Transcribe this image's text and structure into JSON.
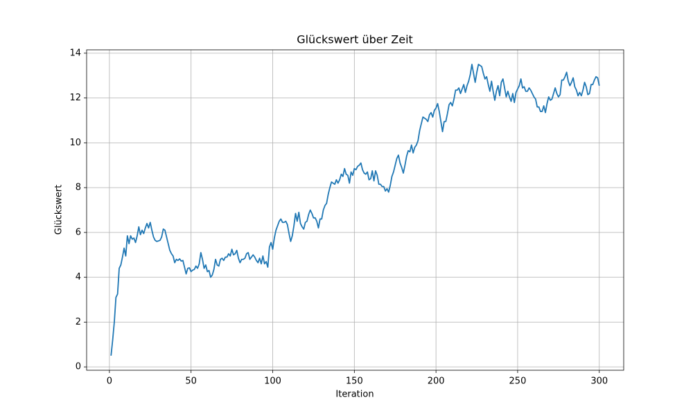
{
  "chart_data": {
    "type": "line",
    "title": "Glückswert über Zeit",
    "xlabel": "Iteration",
    "ylabel": "Glückswert",
    "color": "#1f77b4",
    "grid": true,
    "xlim": [
      -13.95,
      314.95
    ],
    "ylim": [
      -0.15,
      14.15
    ],
    "xticks": [
      0,
      50,
      100,
      150,
      200,
      250,
      300
    ],
    "yticks": [
      0,
      2,
      4,
      6,
      8,
      10,
      12,
      14
    ],
    "x": [
      1,
      2,
      3,
      4,
      5,
      6,
      7,
      8,
      9,
      10,
      11,
      12,
      13,
      14,
      15,
      16,
      17,
      18,
      19,
      20,
      21,
      22,
      23,
      24,
      25,
      26,
      27,
      28,
      29,
      30,
      31,
      32,
      33,
      34,
      35,
      36,
      37,
      38,
      39,
      40,
      41,
      42,
      43,
      44,
      45,
      46,
      47,
      48,
      49,
      50,
      51,
      52,
      53,
      54,
      55,
      56,
      57,
      58,
      59,
      60,
      61,
      62,
      63,
      64,
      65,
      66,
      67,
      68,
      69,
      70,
      71,
      72,
      73,
      74,
      75,
      76,
      77,
      78,
      79,
      80,
      81,
      82,
      83,
      84,
      85,
      86,
      87,
      88,
      89,
      90,
      91,
      92,
      93,
      94,
      95,
      96,
      97,
      98,
      99,
      100,
      101,
      102,
      103,
      104,
      105,
      106,
      107,
      108,
      109,
      110,
      111,
      112,
      113,
      114,
      115,
      116,
      117,
      118,
      119,
      120,
      121,
      122,
      123,
      124,
      125,
      126,
      127,
      128,
      129,
      130,
      131,
      132,
      133,
      134,
      135,
      136,
      137,
      138,
      139,
      140,
      141,
      142,
      143,
      144,
      145,
      146,
      147,
      148,
      149,
      150,
      151,
      152,
      153,
      154,
      155,
      156,
      157,
      158,
      159,
      160,
      161,
      162,
      163,
      164,
      165,
      166,
      167,
      168,
      169,
      170,
      171,
      172,
      173,
      174,
      175,
      176,
      177,
      178,
      179,
      180,
      181,
      182,
      183,
      184,
      185,
      186,
      187,
      188,
      189,
      190,
      191,
      192,
      193,
      194,
      195,
      196,
      197,
      198,
      199,
      200,
      201,
      202,
      203,
      204,
      205,
      206,
      207,
      208,
      209,
      210,
      211,
      212,
      213,
      214,
      215,
      216,
      217,
      218,
      219,
      220,
      221,
      222,
      223,
      224,
      225,
      226,
      227,
      228,
      229,
      230,
      231,
      232,
      233,
      234,
      235,
      236,
      237,
      238,
      239,
      240,
      241,
      242,
      243,
      244,
      245,
      246,
      247,
      248,
      249,
      250,
      251,
      252,
      253,
      254,
      255,
      256,
      257,
      258,
      259,
      260,
      261,
      262,
      263,
      264,
      265,
      266,
      267,
      268,
      269,
      270,
      271,
      272,
      273,
      274,
      275,
      276,
      277,
      278,
      279,
      280,
      281,
      282,
      283,
      284,
      285,
      286,
      287,
      288,
      289,
      290,
      291,
      292,
      293,
      294,
      295,
      296,
      297,
      298,
      299,
      300
    ],
    "values": [
      0.5,
      1.2,
      2.0,
      3.1,
      3.25,
      4.4,
      4.55,
      4.9,
      5.3,
      4.95,
      5.85,
      5.5,
      5.85,
      5.7,
      5.75,
      5.55,
      5.85,
      6.25,
      5.9,
      6.1,
      5.95,
      6.2,
      6.4,
      6.2,
      6.45,
      6.1,
      5.8,
      5.65,
      5.6,
      5.62,
      5.65,
      5.8,
      6.15,
      6.1,
      5.8,
      5.5,
      5.2,
      5.05,
      4.95,
      4.65,
      4.8,
      4.75,
      4.82,
      4.72,
      4.75,
      4.45,
      4.15,
      4.4,
      4.42,
      4.25,
      4.32,
      4.35,
      4.5,
      4.4,
      4.6,
      5.1,
      4.8,
      4.4,
      4.55,
      4.25,
      4.3,
      4.0,
      4.1,
      4.35,
      4.8,
      4.55,
      4.5,
      4.8,
      4.85,
      4.75,
      4.9,
      4.9,
      5.05,
      4.95,
      5.25,
      5.0,
      5.05,
      5.2,
      4.85,
      4.65,
      4.8,
      4.8,
      4.85,
      5.05,
      5.1,
      4.8,
      4.9,
      5.0,
      4.9,
      4.75,
      4.65,
      4.85,
      4.6,
      4.95,
      4.6,
      4.7,
      4.45,
      5.35,
      5.55,
      5.25,
      5.75,
      6.1,
      6.3,
      6.5,
      6.6,
      6.45,
      6.45,
      6.5,
      6.35,
      5.95,
      5.6,
      5.85,
      6.3,
      6.85,
      6.5,
      6.9,
      6.4,
      6.25,
      6.15,
      6.45,
      6.5,
      6.8,
      7.0,
      6.85,
      6.65,
      6.65,
      6.5,
      6.2,
      6.6,
      6.6,
      7.0,
      7.2,
      7.3,
      7.7,
      8.0,
      8.25,
      8.2,
      8.15,
      8.35,
      8.2,
      8.35,
      8.6,
      8.5,
      8.85,
      8.6,
      8.55,
      8.2,
      8.7,
      8.55,
      8.85,
      8.8,
      8.95,
      9.0,
      9.1,
      8.8,
      8.65,
      8.6,
      8.7,
      8.35,
      8.4,
      8.75,
      8.3,
      8.75,
      8.55,
      8.15,
      8.15,
      8.05,
      8.05,
      7.85,
      7.95,
      7.8,
      8.1,
      8.5,
      8.7,
      9.0,
      9.3,
      9.45,
      9.1,
      8.9,
      8.65,
      9.0,
      9.4,
      9.65,
      9.6,
      9.9,
      9.55,
      9.8,
      9.9,
      10.1,
      10.55,
      10.85,
      11.15,
      11.1,
      11.05,
      10.95,
      11.25,
      11.35,
      11.15,
      11.45,
      11.55,
      11.75,
      11.4,
      10.95,
      10.5,
      10.95,
      10.95,
      11.3,
      11.7,
      11.8,
      11.65,
      11.95,
      12.35,
      12.35,
      12.45,
      12.2,
      12.4,
      12.6,
      12.25,
      12.55,
      12.75,
      13.05,
      13.5,
      13.1,
      12.7,
      13.15,
      13.5,
      13.45,
      13.4,
      13.1,
      12.85,
      12.95,
      12.6,
      12.3,
      12.75,
      12.3,
      11.9,
      12.3,
      12.55,
      12.1,
      12.7,
      12.85,
      12.45,
      12.05,
      12.3,
      12.05,
      11.85,
      12.2,
      11.8,
      12.25,
      12.4,
      12.55,
      12.85,
      12.45,
      12.5,
      12.3,
      12.3,
      12.45,
      12.35,
      12.2,
      12.05,
      11.95,
      11.6,
      11.6,
      11.4,
      11.4,
      11.65,
      11.35,
      11.75,
      12.05,
      11.9,
      11.95,
      12.2,
      12.45,
      12.2,
      12.05,
      12.15,
      12.8,
      12.8,
      12.95,
      13.15,
      12.75,
      12.55,
      12.7,
      12.9,
      12.5,
      12.35,
      12.1,
      12.25,
      12.1,
      12.35,
      12.7,
      12.5,
      12.15,
      12.2,
      12.6,
      12.6,
      12.8,
      12.95,
      12.9,
      12.55
    ]
  }
}
